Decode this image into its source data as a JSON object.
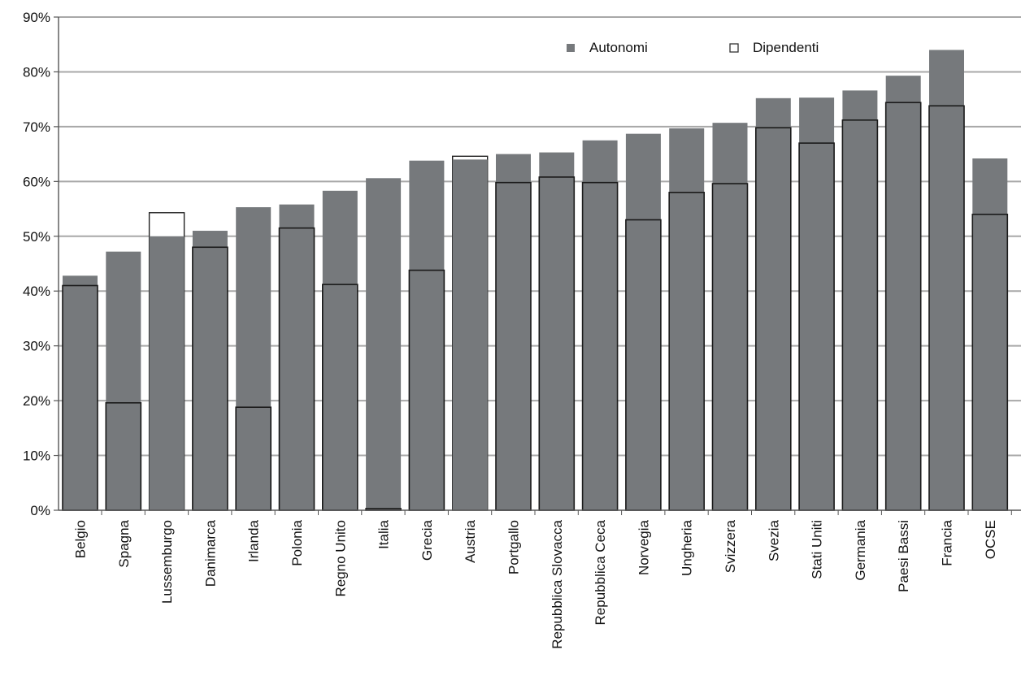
{
  "chart_data": {
    "type": "bar",
    "title": "",
    "xlabel": "",
    "ylabel": "",
    "ylim": [
      0,
      90
    ],
    "yticks": [
      0,
      10,
      20,
      30,
      40,
      50,
      60,
      70,
      80,
      90
    ],
    "ytick_labels": [
      "0%",
      "10%",
      "20%",
      "30%",
      "40%",
      "50%",
      "60%",
      "70%",
      "80%",
      "90%"
    ],
    "grid": true,
    "legend_position": "top-right",
    "categories": [
      "Belgio",
      "Spagna",
      "Lussemburgo",
      "Danimarca",
      "Irlanda",
      "Polonia",
      "Regno Unito",
      "Italia",
      "Grecia",
      "Austria",
      "Portgallo",
      "Repubblica Slovacca",
      "Repubblica Ceca",
      "Norvegia",
      "Ungheria",
      "Svizzera",
      "Svezia",
      "Stati Uniti",
      "Germania",
      "Paesi Bassi",
      "Francia",
      "OCSE"
    ],
    "series": [
      {
        "name": "Autonomi",
        "color": "#76797c",
        "values": [
          42.8,
          47.2,
          50.0,
          51.0,
          55.3,
          55.8,
          58.3,
          60.6,
          63.8,
          64.0,
          65.0,
          65.3,
          67.5,
          68.7,
          69.7,
          70.7,
          75.2,
          75.3,
          76.6,
          79.3,
          84.0,
          64.2
        ]
      },
      {
        "name": "Dipendenti",
        "color": "#ffffff",
        "values": [
          41.0,
          19.6,
          54.3,
          48.0,
          18.8,
          51.5,
          41.2,
          0.3,
          43.8,
          64.6,
          59.8,
          60.8,
          59.8,
          53.0,
          58.0,
          59.6,
          69.8,
          67.0,
          71.2,
          74.4,
          73.8,
          54.0
        ]
      }
    ]
  }
}
